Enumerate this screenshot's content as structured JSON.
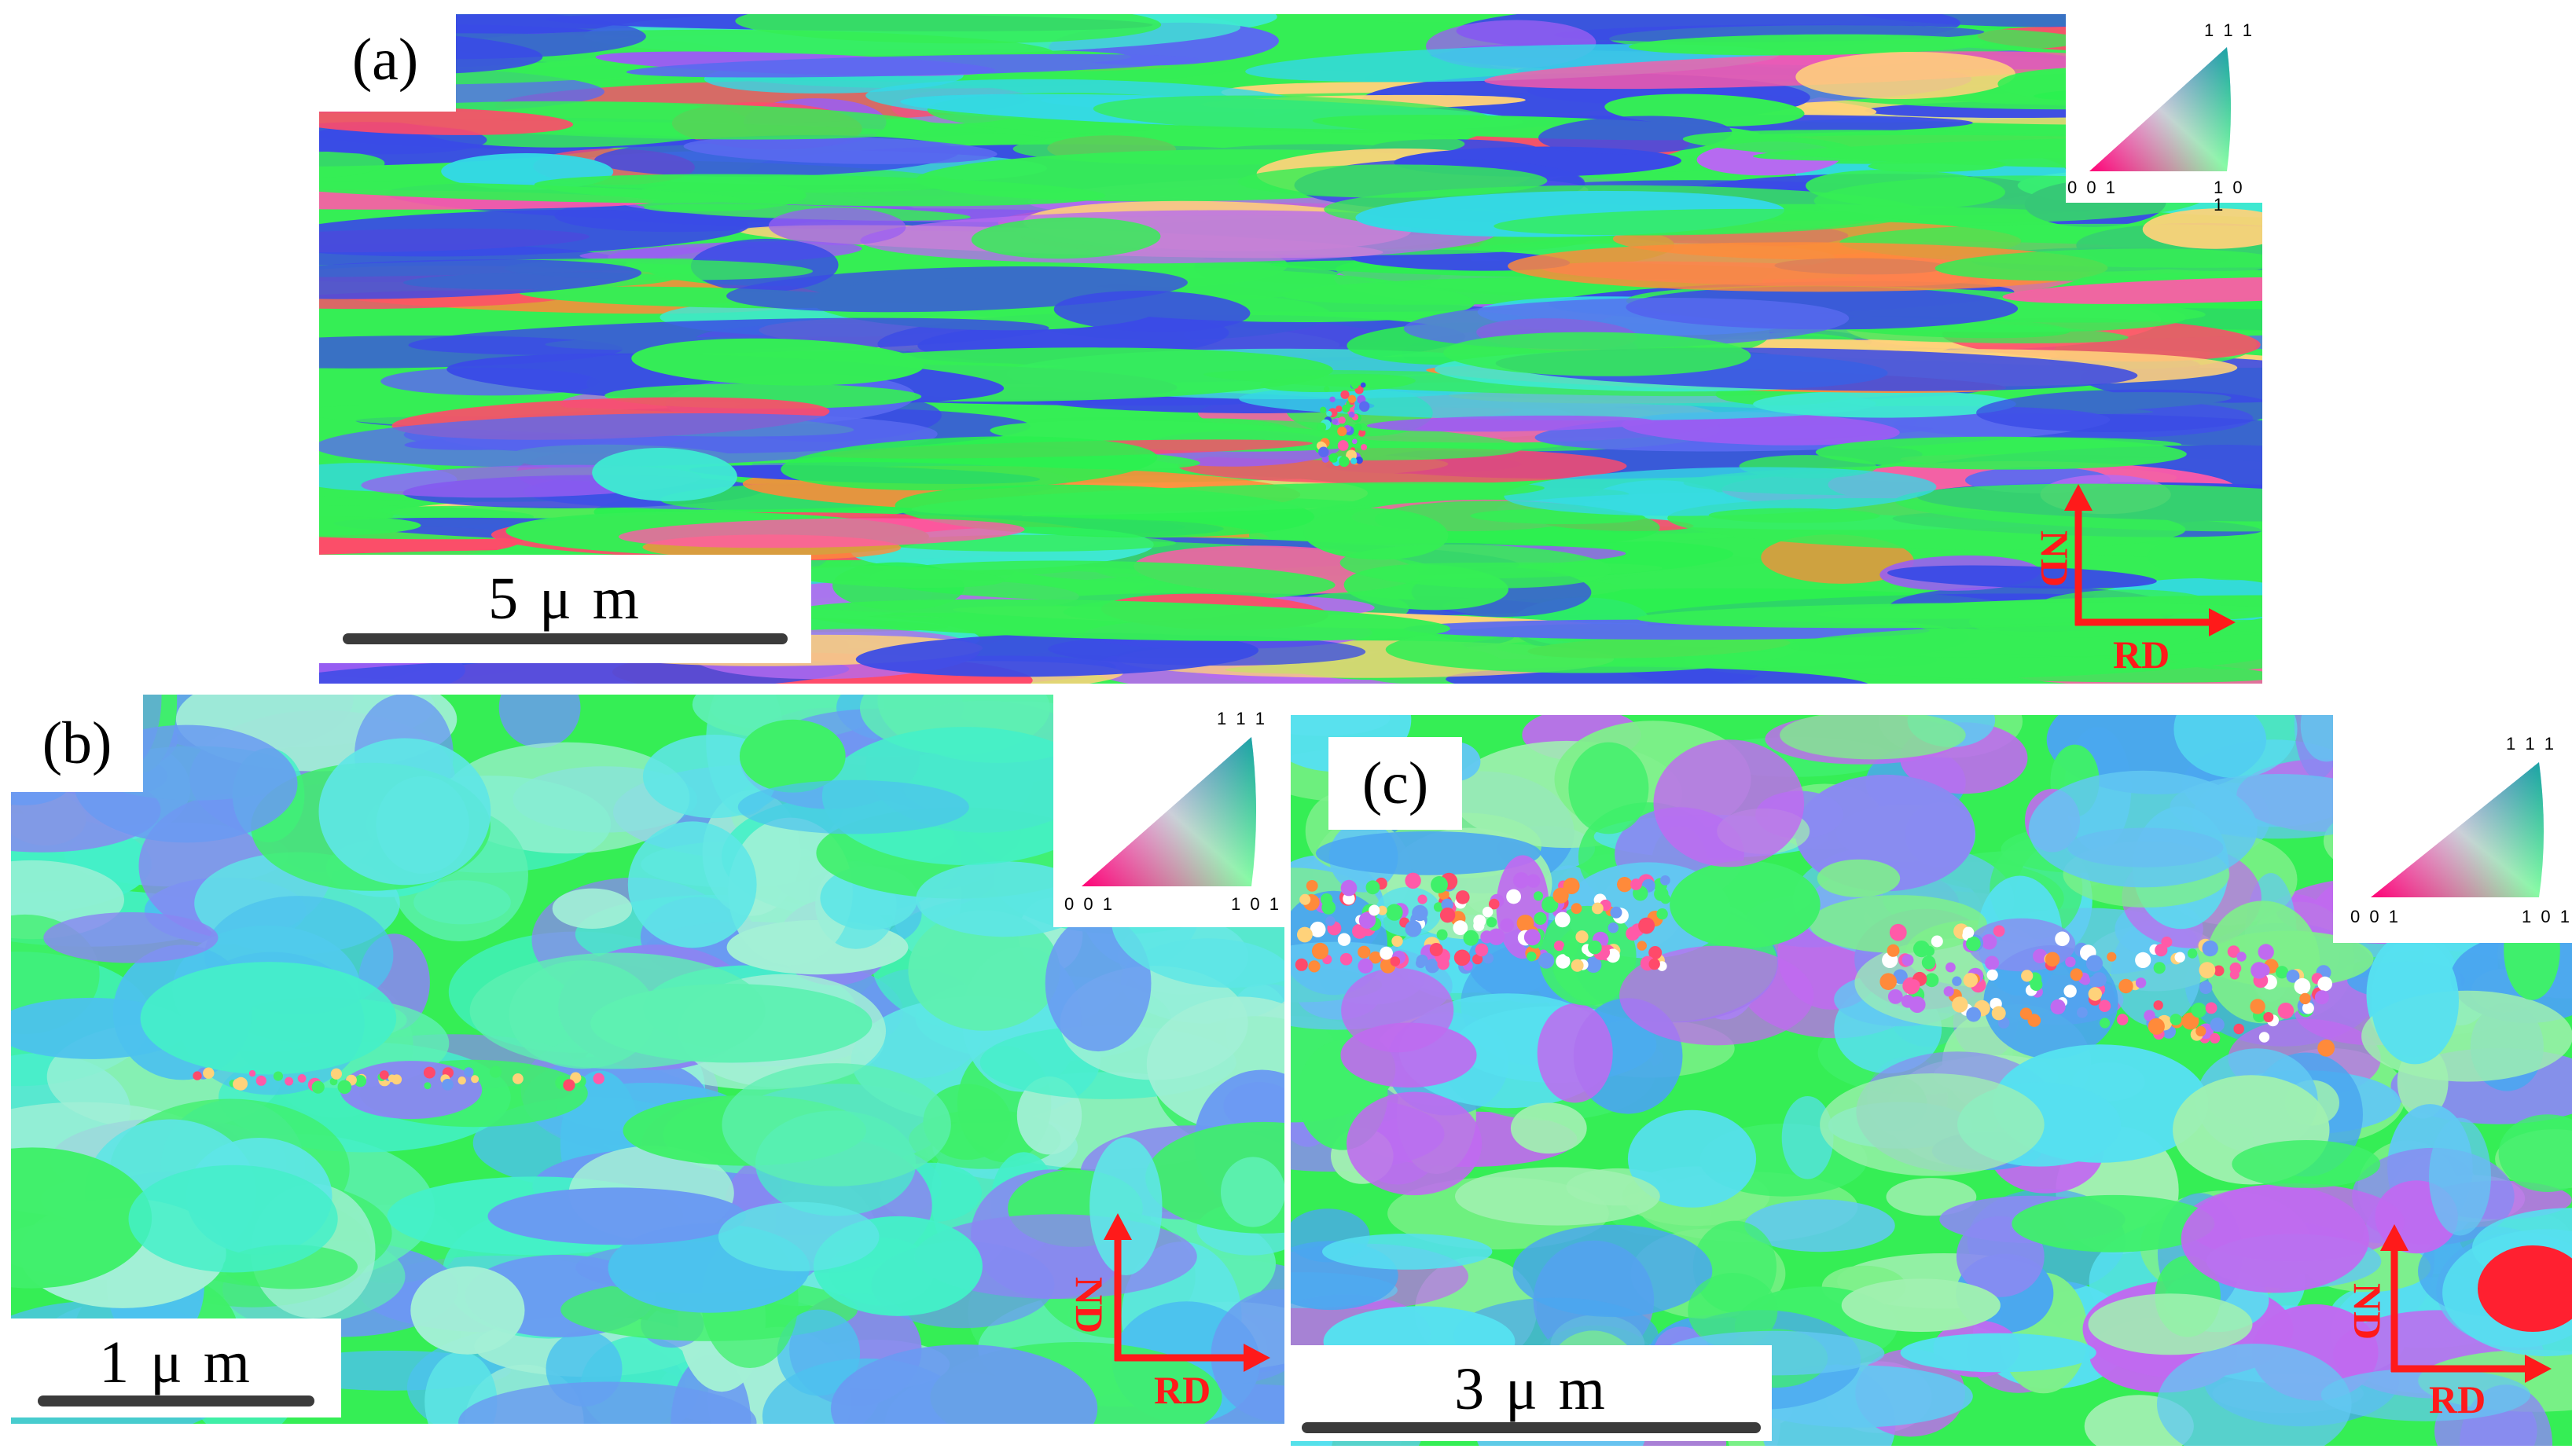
{
  "panels": [
    {
      "id": "a",
      "label": "(a)",
      "scale_text": "5 μ m",
      "ipf": {
        "top": "1 1 1",
        "left": "0 0 1",
        "right": "1 0 1"
      },
      "axis": {
        "vertical": "ND",
        "horizontal": "RD"
      }
    },
    {
      "id": "b",
      "label": "(b)",
      "scale_text": "1 μ m",
      "ipf": {
        "top": "1 1 1",
        "left": "0 0 1",
        "right": "1 0 1"
      },
      "axis": {
        "vertical": "ND",
        "horizontal": "RD"
      }
    },
    {
      "id": "c",
      "label": "(c)",
      "scale_text": "3 μ m",
      "ipf": {
        "top": "1 1 1",
        "left": "0 0 1",
        "right": "1 0 1"
      },
      "axis": {
        "vertical": "ND",
        "horizontal": "RD"
      }
    }
  ],
  "colors": {
    "axis_arrow": "#ff1a1a",
    "scale_bar": "#3b3b3b",
    "grain_palette_a": [
      "#35ee55",
      "#2bf050",
      "#3a4be6",
      "#5a6af0",
      "#34d8e6",
      "#3fe8d2",
      "#ff4a6a",
      "#ff5aa8",
      "#b66af0",
      "#9a5ef2",
      "#ffd27a",
      "#ff8a3a"
    ],
    "grain_palette_b": [
      "#44f0c8",
      "#5ee6e6",
      "#3ff06a",
      "#8a86f2",
      "#6a9af2",
      "#a3f0d6",
      "#4cc2ee",
      "#5ef0b2"
    ],
    "grain_palette_c": [
      "#62c8f2",
      "#56e0f0",
      "#8a8af2",
      "#3ff06a",
      "#a0f0b0",
      "#4aa6f0",
      "#c06af0",
      "#7ef08a"
    ]
  }
}
